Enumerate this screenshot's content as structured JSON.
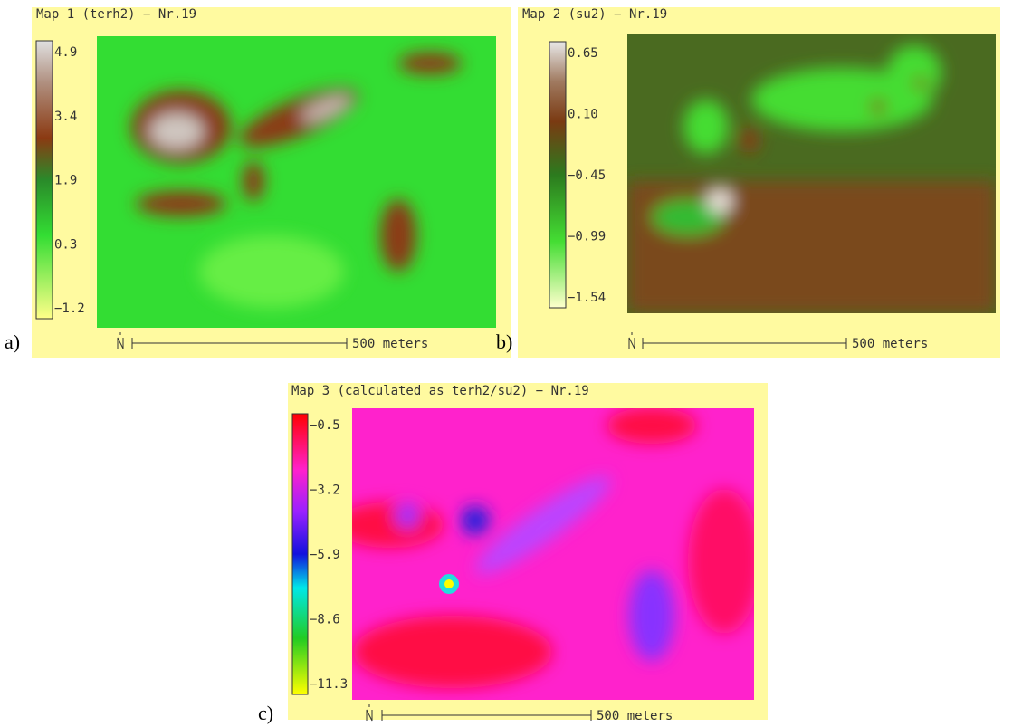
{
  "panels": [
    {
      "label": "a)",
      "title": "Map 1 (terh2) − Nr.19",
      "colorbar_ticks": [
        "4.9",
        "3.4",
        "1.9",
        "0.3",
        "−1.2"
      ],
      "scale_label": "500 meters"
    },
    {
      "label": "b)",
      "title": "Map 2 (su2) − Nr.19",
      "colorbar_ticks": [
        "0.65",
        "0.10",
        "−0.45",
        "−0.99",
        "−1.54"
      ],
      "scale_label": "500 meters"
    },
    {
      "label": "c)",
      "title": "Map 3 (calculated as terh2/su2) − Nr.19",
      "colorbar_ticks": [
        "−0.5",
        "−3.2",
        "−5.9",
        "−8.6",
        "−11.3"
      ],
      "scale_label": "500 meters"
    }
  ]
}
